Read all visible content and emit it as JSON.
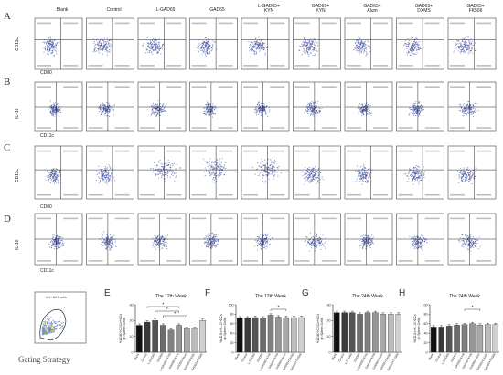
{
  "panels": {
    "A": {
      "label": "A",
      "y_axis": "CD11c",
      "x_axis": "CD80"
    },
    "B": {
      "label": "B",
      "y_axis": "IL-10",
      "x_axis": "CD11c"
    },
    "C": {
      "label": "C",
      "y_axis": "CD11c",
      "x_axis": "CD80"
    },
    "D": {
      "label": "D",
      "y_axis": "IL-10",
      "x_axis": "CD11c"
    }
  },
  "column_headers": [
    "Blank",
    "Control",
    "L-GAD65",
    "GAD65",
    "L-GAD65+\nKYN",
    "GAD65+\nKYN",
    "GAD65+\nAlum",
    "GAD65+\nDXMS",
    "GAD65+\nFK506"
  ],
  "gating": {
    "caption": "Gating Strategy",
    "gate_label": "1-1 : 62.9 cells"
  },
  "bar_charts": [
    {
      "label": "E",
      "title": "The 12th Week",
      "ylabel": "%CD80+CD11c+DCs\n(in Spleen Cells)",
      "ylim": [
        0,
        30
      ],
      "ticks": [
        0,
        10,
        20,
        30
      ],
      "sig": [
        "*",
        "*",
        "*"
      ]
    },
    {
      "label": "F",
      "title": "The 12th Week",
      "ylabel": "%CD11c+IL-10+DCs\n(in Spleen Cells)",
      "ylim": [
        0,
        100
      ],
      "ticks": [
        0,
        20,
        40,
        60,
        80,
        100
      ],
      "sig": [
        "*"
      ]
    },
    {
      "label": "G",
      "title": "The 24th Week",
      "ylabel": "%CD80+CD11c+DCs\n(in Spleen Cells)",
      "ylim": [
        0,
        30
      ],
      "ticks": [
        0,
        10,
        20,
        30
      ],
      "sig": []
    },
    {
      "label": "H",
      "title": "The 24th Week",
      "ylabel": "%CD11c+IL-10+DCs\n(in Spleen Cells)",
      "ylim": [
        0,
        100
      ],
      "ticks": [
        0,
        20,
        40,
        60,
        80,
        100
      ],
      "sig": [
        "*"
      ]
    }
  ],
  "chart_data": [
    {
      "type": "bar",
      "title": "The 12th Week",
      "categories": [
        "Blank",
        "Control",
        "L-GAD65",
        "GAD65",
        "L-GAD65+KYN",
        "GAD65+KYN",
        "GAD65+Alum",
        "GAD65+DXMS",
        "GAD65+FK506"
      ],
      "values": [
        17,
        19,
        20,
        17,
        14,
        17,
        15,
        15,
        20
      ],
      "ylim": [
        0,
        30
      ]
    },
    {
      "type": "bar",
      "title": "The 12th Week",
      "categories": [
        "Blank",
        "Control",
        "L-GAD65",
        "GAD65",
        "L-GAD65+KYN",
        "GAD65+KYN",
        "GAD65+Alum",
        "GAD65+DXMS",
        "GAD65+FK506"
      ],
      "values": [
        72,
        72,
        73,
        72,
        78,
        74,
        73,
        73,
        73
      ],
      "ylim": [
        0,
        100
      ]
    },
    {
      "type": "bar",
      "title": "The 24th Week",
      "categories": [
        "Blank",
        "Control",
        "L-GAD65",
        "GAD65",
        "L-GAD65+KYN",
        "GAD65+KYN",
        "GAD65+Alum",
        "GAD65+DXMS",
        "GAD65+FK506"
      ],
      "values": [
        25,
        25,
        25,
        24,
        25,
        25,
        24,
        24,
        24
      ],
      "ylim": [
        0,
        30
      ]
    },
    {
      "type": "bar",
      "title": "The 24th Week",
      "categories": [
        "Blank",
        "Control",
        "L-GAD65",
        "GAD65",
        "L-GAD65+KYN",
        "GAD65+KYN",
        "GAD65+Alum",
        "GAD65+DXMS",
        "GAD65+FK506"
      ],
      "values": [
        53,
        53,
        55,
        57,
        58,
        60,
        57,
        58,
        58
      ],
      "ylim": [
        0,
        100
      ]
    }
  ],
  "bar_colors": [
    "#111111",
    "#3a3a3a",
    "#555555",
    "#6c6c6c",
    "#808080",
    "#969696",
    "#a8a8a8",
    "#bcbcbc",
    "#cfcfcf"
  ],
  "dot_color": "#3b4a9c"
}
